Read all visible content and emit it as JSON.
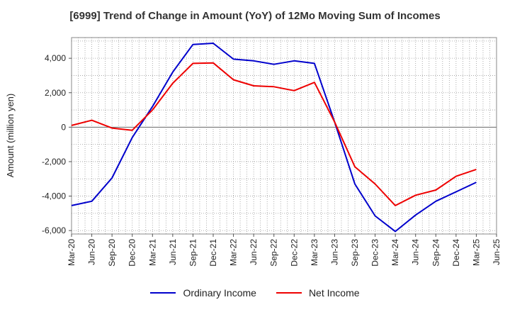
{
  "chart_data": {
    "type": "line",
    "title": "[6999]  Trend of Change in Amount (YoY) of 12Mo Moving Sum of Incomes",
    "xlabel": "",
    "ylabel": "Amount (million yen)",
    "x_ticks": [
      "Mar-20",
      "Jun-20",
      "Sep-20",
      "Dec-20",
      "Mar-21",
      "Jun-21",
      "Sep-21",
      "Dec-21",
      "Mar-22",
      "Jun-22",
      "Sep-22",
      "Dec-22",
      "Mar-23",
      "Jun-23",
      "Sep-23",
      "Dec-23",
      "Mar-24",
      "Jun-24",
      "Sep-24",
      "Dec-24",
      "Mar-25",
      "Jun-25"
    ],
    "y_ticks": [
      4000,
      2000,
      0,
      -2000,
      -4000,
      -6000
    ],
    "y_tick_labels": [
      "4,000",
      "2,000",
      "0",
      "-2,000",
      "-4,000",
      "-6,000"
    ],
    "ylim": [
      -6200,
      5200
    ],
    "grid": true,
    "legend_position": "bottom",
    "series": [
      {
        "name": "Ordinary Income",
        "color": "#0000cc",
        "values": [
          -4550,
          -4300,
          -2950,
          -600,
          1200,
          3200,
          4800,
          4870,
          3950,
          3850,
          3650,
          3850,
          3700,
          300,
          -3300,
          -5150,
          -6050,
          -5100,
          -4300,
          -3750,
          -3200
        ]
      },
      {
        "name": "Net Income",
        "color": "#ee0000",
        "values": [
          100,
          400,
          -50,
          -180,
          1000,
          2550,
          3700,
          3730,
          2750,
          2400,
          2350,
          2120,
          2600,
          300,
          -2300,
          -3300,
          -4550,
          -3950,
          -3650,
          -2850,
          -2450
        ]
      }
    ]
  }
}
